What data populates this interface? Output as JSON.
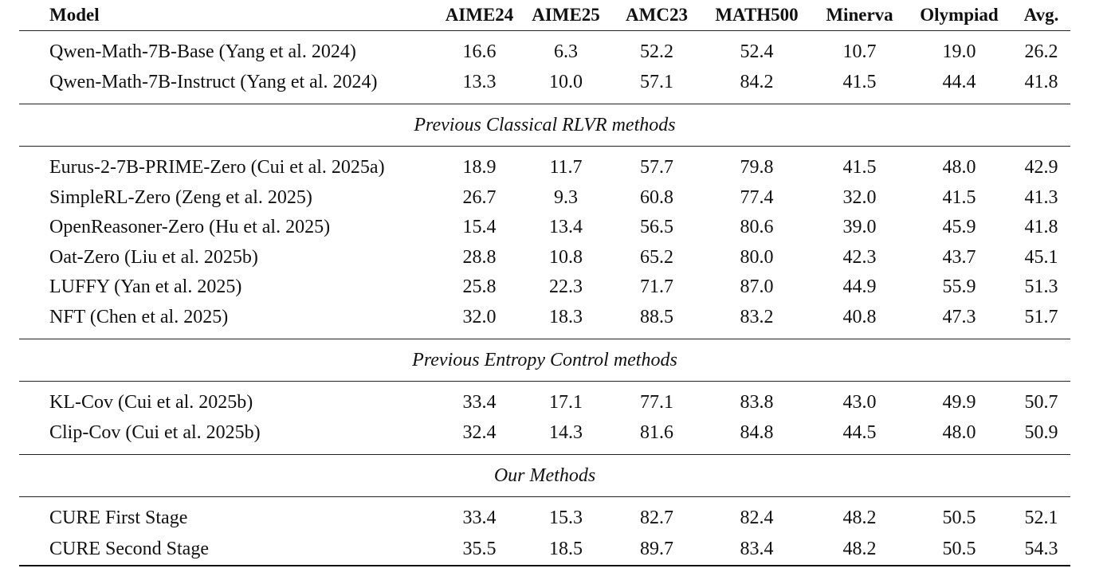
{
  "columns": [
    "Model",
    "AIME24",
    "AIME25",
    "AMC23",
    "MATH500",
    "Minerva",
    "Olympiad",
    "Avg."
  ],
  "base_rows": [
    {
      "model": "Qwen-Math-7B-Base (Yang et al. 2024)",
      "aime24": "16.6",
      "aime25": "6.3",
      "amc23": "52.2",
      "math500": "52.4",
      "minerva": "10.7",
      "olympiad": "19.0",
      "avg": "26.2"
    },
    {
      "model": "Qwen-Math-7B-Instruct (Yang et al. 2024)",
      "aime24": "13.3",
      "aime25": "10.0",
      "amc23": "57.1",
      "math500": "84.2",
      "minerva": "41.5",
      "olympiad": "44.4",
      "avg": "41.8"
    }
  ],
  "sections": [
    {
      "title": "Previous Classical RLVR methods",
      "rows": [
        {
          "model": "Eurus-2-7B-PRIME-Zero (Cui et al. 2025a)",
          "aime24": "18.9",
          "aime25": "11.7",
          "amc23": "57.7",
          "math500": "79.8",
          "minerva": "41.5",
          "olympiad": "48.0",
          "avg": "42.9"
        },
        {
          "model": "SimpleRL-Zero (Zeng et al. 2025)",
          "aime24": "26.7",
          "aime25": "9.3",
          "amc23": "60.8",
          "math500": "77.4",
          "minerva": "32.0",
          "olympiad": "41.5",
          "avg": "41.3"
        },
        {
          "model": "OpenReasoner-Zero (Hu et al. 2025)",
          "aime24": "15.4",
          "aime25": "13.4",
          "amc23": "56.5",
          "math500": "80.6",
          "minerva": "39.0",
          "olympiad": "45.9",
          "avg": "41.8"
        },
        {
          "model": "Oat-Zero (Liu et al. 2025b)",
          "aime24": "28.8",
          "aime25": "10.8",
          "amc23": "65.2",
          "math500": "80.0",
          "minerva": "42.3",
          "olympiad": "43.7",
          "avg": "45.1"
        },
        {
          "model": "LUFFY (Yan et al. 2025)",
          "aime24": "25.8",
          "aime25": "22.3",
          "amc23": "71.7",
          "math500": "87.0",
          "minerva": "44.9",
          "olympiad": "55.9",
          "avg": "51.3"
        },
        {
          "model": "NFT (Chen et al. 2025)",
          "aime24": "32.0",
          "aime25": "18.3",
          "amc23": "88.5",
          "math500": "83.2",
          "minerva": "40.8",
          "olympiad": "47.3",
          "avg": "51.7"
        }
      ]
    },
    {
      "title": "Previous Entropy Control methods",
      "rows": [
        {
          "model": "KL-Cov (Cui et al. 2025b)",
          "aime24": "33.4",
          "aime25": "17.1",
          "amc23": "77.1",
          "math500": "83.8",
          "minerva": "43.0",
          "olympiad": "49.9",
          "avg": "50.7"
        },
        {
          "model": "Clip-Cov (Cui et al. 2025b)",
          "aime24": "32.4",
          "aime25": "14.3",
          "amc23": "81.6",
          "math500": "84.8",
          "minerva": "44.5",
          "olympiad": "48.0",
          "avg": "50.9"
        }
      ]
    },
    {
      "title": "Our Methods",
      "rows": [
        {
          "model": "CURE First Stage",
          "aime24": "33.4",
          "aime25": "15.3",
          "amc23": "82.7",
          "math500": "82.4",
          "minerva": "48.2",
          "olympiad": "50.5",
          "avg": "52.1"
        },
        {
          "model": "CURE Second Stage",
          "aime24": "35.5",
          "aime25": "18.5",
          "amc23": "89.7",
          "math500": "83.4",
          "minerva": "48.2",
          "olympiad": "50.5",
          "avg": "54.3"
        }
      ]
    }
  ]
}
